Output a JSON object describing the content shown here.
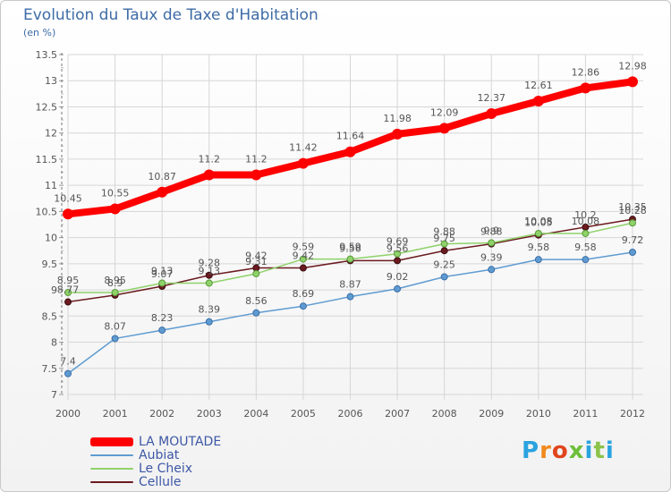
{
  "title": "Evolution du Taux de Taxe d'Habitation",
  "subtitle": "(en %)",
  "logo": {
    "text": "Proxiti",
    "colors": [
      "#2aa3df",
      "#f08a1c",
      "#e0451c",
      "#6cbf3a",
      "#2aa3df",
      "#8bc34a",
      "#2aa3df"
    ]
  },
  "chart_data": {
    "type": "line",
    "x": [
      "2000",
      "2001",
      "2002",
      "2003",
      "2004",
      "2005",
      "2006",
      "2007",
      "2008",
      "2009",
      "2010",
      "2011",
      "2012"
    ],
    "ylim": [
      7,
      13.5
    ],
    "yticks": [
      "7",
      "7.5",
      "8",
      "8.5",
      "9",
      "9.5",
      "10",
      "10.5",
      "11",
      "11.5",
      "12",
      "12.5",
      "13",
      "13.5"
    ],
    "grid": true,
    "legend_position": "bottom-left",
    "series": [
      {
        "name": "LA MOUTADE",
        "color": "#ff0000",
        "values": [
          10.45,
          10.55,
          10.87,
          11.2,
          11.2,
          11.42,
          11.64,
          11.98,
          12.09,
          12.37,
          12.61,
          12.86,
          12.98
        ],
        "labels": [
          "10.45",
          "10.55",
          "10.87",
          "11.2",
          "11.2",
          "11.42",
          "11.64",
          "11.98",
          "12.09",
          "12.37",
          "12.61",
          "12.86",
          "12.98"
        ]
      },
      {
        "name": "Aubiat",
        "color": "#5f9bd1",
        "values": [
          7.4,
          8.07,
          8.23,
          8.39,
          8.56,
          8.69,
          8.87,
          9.02,
          9.25,
          9.39,
          9.58,
          9.58,
          9.72
        ],
        "labels": [
          "7.4",
          "8.07",
          "8.23",
          "8.39",
          "8.56",
          "8.69",
          "8.87",
          "9.02",
          "9.25",
          "9.39",
          "9.58",
          "9.58",
          "9.72"
        ]
      },
      {
        "name": "Le Cheix",
        "color": "#8fd26a",
        "values": [
          8.95,
          8.95,
          9.13,
          9.13,
          9.31,
          9.59,
          9.59,
          9.69,
          9.88,
          9.9,
          10.08,
          10.08,
          10.28
        ],
        "labels": [
          "8.95",
          "8.95",
          "9.13",
          "9.13",
          "9.31",
          "9.59",
          "9.59",
          "9.69",
          "9.88",
          "9.9",
          "10.08",
          "10.08",
          "10.28"
        ]
      },
      {
        "name": "Cellule",
        "color": "#6b1a1f",
        "values": [
          8.77,
          8.9,
          9.07,
          9.28,
          9.42,
          9.42,
          9.56,
          9.56,
          9.75,
          9.88,
          10.05,
          10.2,
          10.35
        ],
        "labels": [
          "8.77",
          "8.9",
          "9.07",
          "9.28",
          "9.42",
          "9.42",
          "9.56",
          "9.56",
          "9.75",
          "9.88",
          "10.05",
          "10.2",
          "10.35"
        ]
      }
    ]
  }
}
